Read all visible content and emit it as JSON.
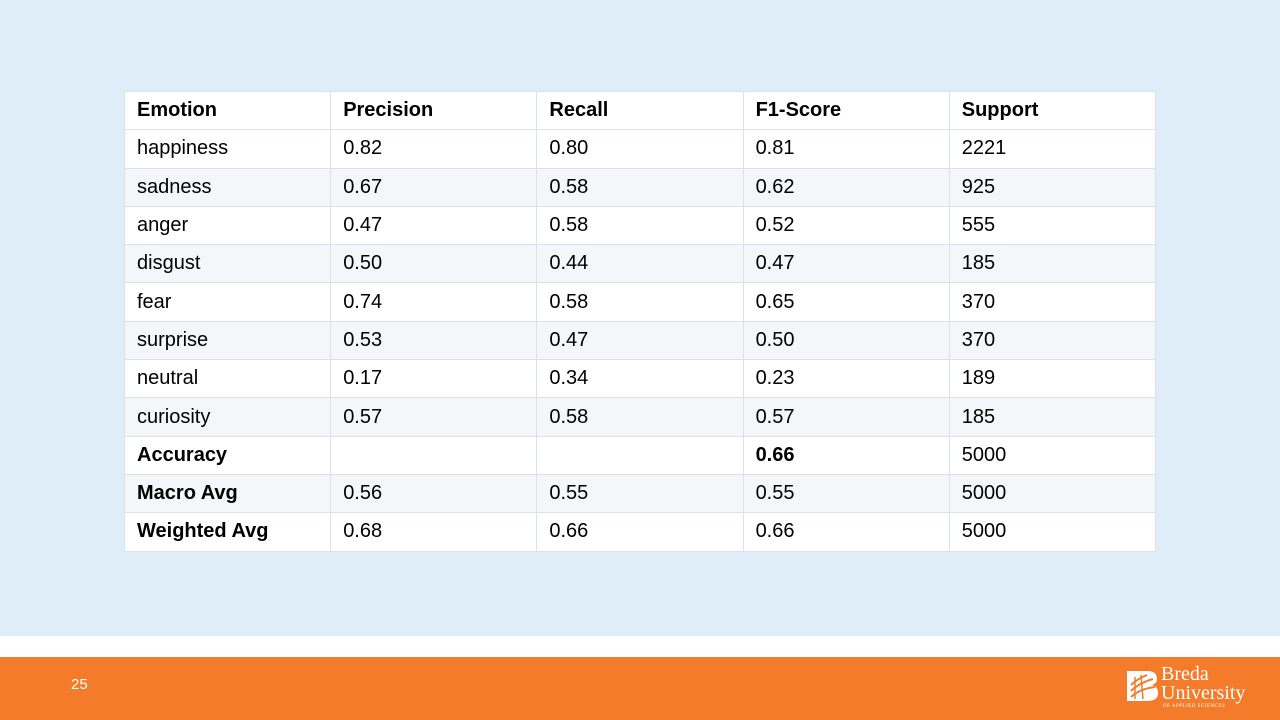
{
  "slide": {
    "page_number": "25"
  },
  "table": {
    "headers": [
      "Emotion",
      "Precision",
      "Recall",
      "F1-Score",
      "Support"
    ],
    "rows": [
      [
        "happiness",
        "0.82",
        "0.80",
        "0.81",
        "2221"
      ],
      [
        "sadness",
        "0.67",
        "0.58",
        "0.62",
        "925"
      ],
      [
        "anger",
        "0.47",
        "0.58",
        "0.52",
        "555"
      ],
      [
        "disgust",
        "0.50",
        "0.44",
        "0.47",
        "185"
      ],
      [
        "fear",
        "0.74",
        "0.58",
        "0.65",
        "370"
      ],
      [
        "surprise",
        "0.53",
        "0.47",
        "0.50",
        "370"
      ],
      [
        "neutral",
        "0.17",
        "0.34",
        "0.23",
        "189"
      ],
      [
        "curiosity",
        "0.57",
        "0.58",
        "0.57",
        "185"
      ],
      [
        "Accuracy",
        "",
        "",
        "0.66",
        "5000"
      ],
      [
        "Macro Avg",
        "0.56",
        "0.55",
        "0.55",
        "5000"
      ],
      [
        "Weighted Avg",
        "0.68",
        "0.66",
        "0.66",
        "5000"
      ]
    ]
  },
  "logo": {
    "line1": "Breda",
    "line2": "University",
    "line3": "OF APPLIED SCIENCES"
  },
  "colors": {
    "slide_background": "#deedf8",
    "footer_background": "#f47b2a",
    "table_border": "#d9e1ea"
  }
}
